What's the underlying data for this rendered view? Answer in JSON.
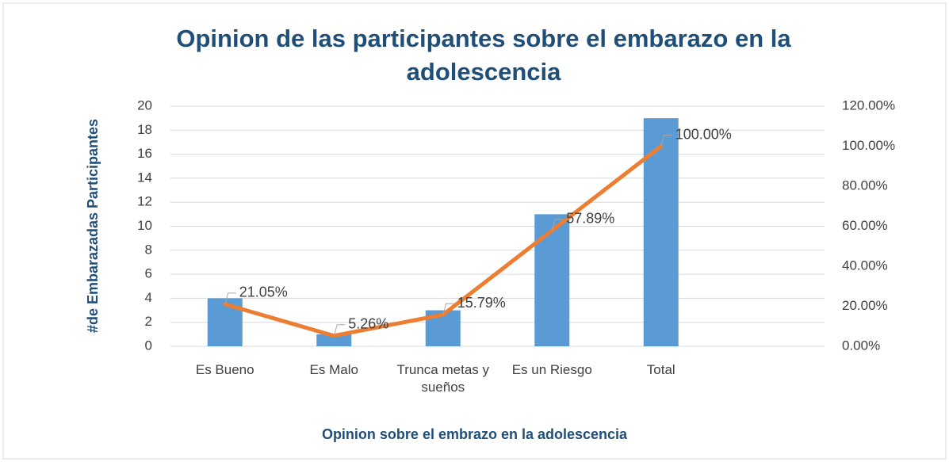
{
  "chart_data": {
    "type": "bar-line",
    "title": "Opinion de las participantes sobre el embarazo en la adolescencia",
    "x_label": "Opinion sobre el embrazo en la adolescencia",
    "y_label": "#de Embarazadas Participantes",
    "categories": [
      "Es Bueno",
      "Es Malo",
      "Trunca metas y sueños",
      "Es un Riesgo",
      "Total",
      null
    ],
    "series": [
      {
        "type": "bar",
        "color": "#5b9bd5",
        "values": [
          4,
          1,
          3,
          11,
          19,
          null
        ]
      },
      {
        "type": "line",
        "axis": "y2",
        "color": "#ed7d31",
        "values": [
          21.05,
          5.26,
          15.79,
          57.89,
          100,
          null
        ],
        "value_labels": [
          "21.05%",
          "5.26%",
          "15.79%",
          "57.89%",
          "100.00%",
          null
        ]
      }
    ],
    "ylim": [
      0,
      20
    ],
    "yticks": [
      0,
      2,
      4,
      6,
      8,
      10,
      12,
      14,
      16,
      18,
      20
    ],
    "y2lim": [
      0,
      120
    ],
    "y2ticks": [
      {
        "value": 0,
        "label": "0.00%"
      },
      {
        "value": 20,
        "label": "20.00%"
      },
      {
        "value": 40,
        "label": "40.00%"
      },
      {
        "value": 60,
        "label": "60.00%"
      },
      {
        "value": 80,
        "label": "80.00%"
      },
      {
        "value": 100,
        "label": "100.00%"
      },
      {
        "value": 120,
        "label": "120.00%"
      }
    ],
    "grid": true
  }
}
